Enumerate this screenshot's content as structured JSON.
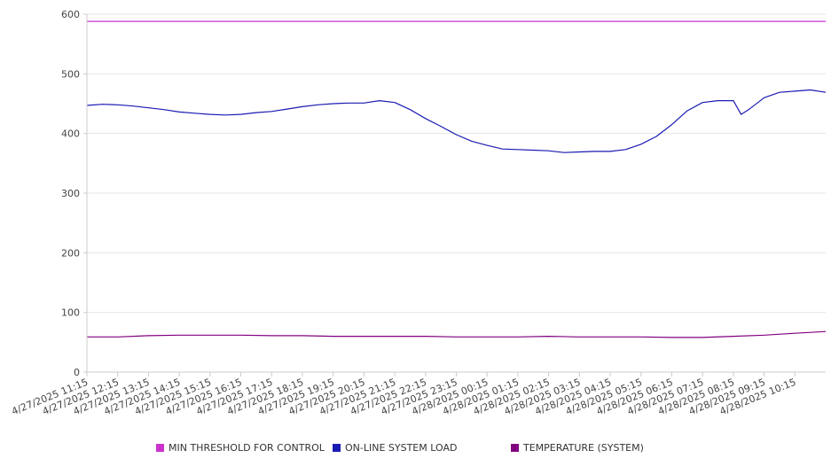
{
  "chart_data": {
    "type": "line",
    "title": "",
    "xlabel": "",
    "ylabel": "",
    "ylim": [
      0,
      600
    ],
    "yticks": [
      0,
      100,
      200,
      300,
      400,
      500,
      600
    ],
    "grid": true,
    "legend_position": "bottom",
    "x_tick_labels": [
      "4/27/2025 11:15",
      "4/27/2025 12:15",
      "4/27/2025 13:15",
      "4/27/2025 14:15",
      "4/27/2025 15:15",
      "4/27/2025 16:15",
      "4/27/2025 17:15",
      "4/27/2025 18:15",
      "4/27/2025 19:15",
      "4/27/2025 20:15",
      "4/27/2025 21:15",
      "4/27/2025 22:15",
      "4/27/2025 23:15",
      "4/28/2025 00:15",
      "4/28/2025 01:15",
      "4/28/2025 02:15",
      "4/28/2025 03:15",
      "4/28/2025 04:15",
      "4/28/2025 05:15",
      "4/28/2025 06:15",
      "4/28/2025 07:15",
      "4/28/2025 08:15",
      "4/28/2025 09:15",
      "4/28/2025 10:15"
    ],
    "x_range": [
      "4/27/2025 11:15",
      "4/28/2025 11:15"
    ],
    "series": [
      {
        "name": "MIN THRESHOLD FOR CONTROL",
        "color": "#cc33cc",
        "points": [
          [
            "4/27/2025 11:15",
            588
          ],
          [
            "4/28/2025 11:15",
            588
          ]
        ]
      },
      {
        "name": "ON-LINE SYSTEM LOAD",
        "color": "#1a1ab3",
        "points": [
          [
            "4/27/2025 11:15",
            447
          ],
          [
            "4/27/2025 11:45",
            449
          ],
          [
            "4/27/2025 12:15",
            448
          ],
          [
            "4/27/2025 12:45",
            446
          ],
          [
            "4/27/2025 13:15",
            443
          ],
          [
            "4/27/2025 13:45",
            440
          ],
          [
            "4/27/2025 14:15",
            436
          ],
          [
            "4/27/2025 14:45",
            434
          ],
          [
            "4/27/2025 15:15",
            432
          ],
          [
            "4/27/2025 15:45",
            431
          ],
          [
            "4/27/2025 16:15",
            432
          ],
          [
            "4/27/2025 16:45",
            435
          ],
          [
            "4/27/2025 17:15",
            437
          ],
          [
            "4/27/2025 17:45",
            441
          ],
          [
            "4/27/2025 18:15",
            445
          ],
          [
            "4/27/2025 18:45",
            448
          ],
          [
            "4/27/2025 19:15",
            450
          ],
          [
            "4/27/2025 19:45",
            451
          ],
          [
            "4/27/2025 20:15",
            451
          ],
          [
            "4/27/2025 20:45",
            455
          ],
          [
            "4/27/2025 21:15",
            452
          ],
          [
            "4/27/2025 21:45",
            440
          ],
          [
            "4/27/2025 22:15",
            425
          ],
          [
            "4/27/2025 22:45",
            412
          ],
          [
            "4/27/2025 23:15",
            398
          ],
          [
            "4/27/2025 23:45",
            387
          ],
          [
            "4/28/2025 00:15",
            380
          ],
          [
            "4/28/2025 00:45",
            374
          ],
          [
            "4/28/2025 01:15",
            373
          ],
          [
            "4/28/2025 01:45",
            372
          ],
          [
            "4/28/2025 02:15",
            371
          ],
          [
            "4/28/2025 02:45",
            368
          ],
          [
            "4/28/2025 03:15",
            369
          ],
          [
            "4/28/2025 03:45",
            370
          ],
          [
            "4/28/2025 04:15",
            370
          ],
          [
            "4/28/2025 04:45",
            373
          ],
          [
            "4/28/2025 05:15",
            382
          ],
          [
            "4/28/2025 05:45",
            395
          ],
          [
            "4/28/2025 06:15",
            415
          ],
          [
            "4/28/2025 06:45",
            438
          ],
          [
            "4/28/2025 07:15",
            452
          ],
          [
            "4/28/2025 07:45",
            455
          ],
          [
            "4/28/2025 08:15",
            455
          ],
          [
            "4/28/2025 08:30",
            432
          ],
          [
            "4/28/2025 08:45",
            440
          ],
          [
            "4/28/2025 09:15",
            460
          ],
          [
            "4/28/2025 09:45",
            469
          ],
          [
            "4/28/2025 10:15",
            471
          ],
          [
            "4/28/2025 10:45",
            473
          ],
          [
            "4/28/2025 11:15",
            469
          ]
        ]
      },
      {
        "name": "TEMPERATURE (SYSTEM)",
        "color": "#800080",
        "points": [
          [
            "4/27/2025 11:15",
            59
          ],
          [
            "4/27/2025 12:15",
            59
          ],
          [
            "4/27/2025 13:15",
            61
          ],
          [
            "4/27/2025 14:15",
            62
          ],
          [
            "4/27/2025 15:15",
            62
          ],
          [
            "4/27/2025 16:15",
            62
          ],
          [
            "4/27/2025 17:15",
            61
          ],
          [
            "4/27/2025 18:15",
            61
          ],
          [
            "4/27/2025 19:15",
            60
          ],
          [
            "4/27/2025 20:15",
            60
          ],
          [
            "4/27/2025 21:15",
            60
          ],
          [
            "4/27/2025 22:15",
            60
          ],
          [
            "4/27/2025 23:15",
            59
          ],
          [
            "4/28/2025 00:15",
            59
          ],
          [
            "4/28/2025 01:15",
            59
          ],
          [
            "4/28/2025 02:15",
            60
          ],
          [
            "4/28/2025 03:15",
            59
          ],
          [
            "4/28/2025 04:15",
            59
          ],
          [
            "4/28/2025 05:15",
            59
          ],
          [
            "4/28/2025 06:15",
            58
          ],
          [
            "4/28/2025 07:15",
            58
          ],
          [
            "4/28/2025 08:15",
            60
          ],
          [
            "4/28/2025 09:15",
            62
          ],
          [
            "4/28/2025 10:15",
            65
          ],
          [
            "4/28/2025 11:15",
            68
          ]
        ]
      }
    ]
  }
}
